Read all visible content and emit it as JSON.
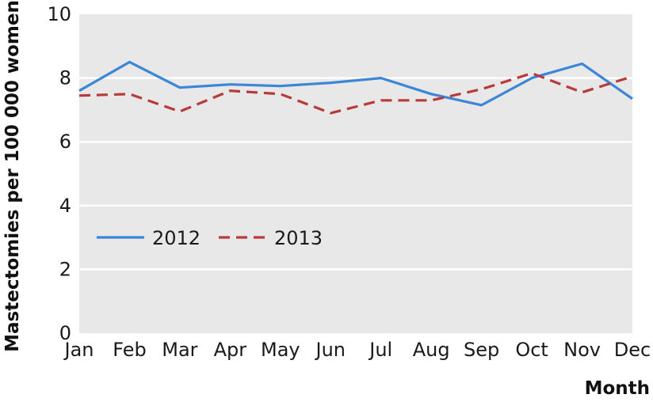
{
  "chart_data": {
    "type": "line",
    "title": "",
    "xlabel": "Month",
    "ylabel": "Mastectomies per 100 000 women",
    "categories": [
      "Jan",
      "Feb",
      "Mar",
      "Apr",
      "May",
      "Jun",
      "Jul",
      "Aug",
      "Sep",
      "Oct",
      "Nov",
      "Dec"
    ],
    "ylim": [
      0,
      10
    ],
    "yticks": [
      0,
      2,
      4,
      6,
      8,
      10
    ],
    "grid": true,
    "legend_position": "lower-left",
    "series": [
      {
        "name": "2012",
        "color": "#3b86d6",
        "dash": "solid",
        "values": [
          7.6,
          8.5,
          7.7,
          7.8,
          7.75,
          7.85,
          8.0,
          7.5,
          7.15,
          8.0,
          8.45,
          7.35
        ]
      },
      {
        "name": "2013",
        "color": "#b83a3a",
        "dash": "dashed",
        "values": [
          7.45,
          7.5,
          6.95,
          7.6,
          7.5,
          6.9,
          7.3,
          7.3,
          7.65,
          8.15,
          7.55,
          8.05
        ]
      }
    ]
  }
}
